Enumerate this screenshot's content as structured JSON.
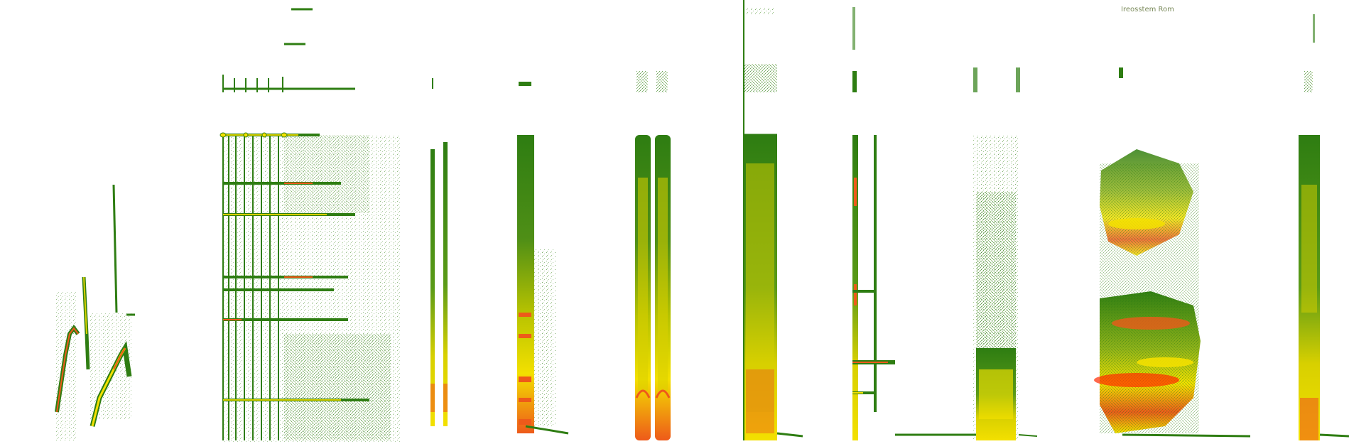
{
  "image": {
    "kind": "spectrogram",
    "background": "#ffffff",
    "palette": {
      "low": "#2e7d12",
      "mid_low": "#6fa31c",
      "mid": "#d8d000",
      "high": "#f3e000",
      "peak": "#ee5a1a",
      "hot": "#ff2a00"
    },
    "faint_text": "Ireosstem Rom"
  },
  "events": [
    {
      "label": "chirp-cluster-1"
    },
    {
      "label": "harmonic-comb"
    },
    {
      "label": "thin-pair"
    },
    {
      "label": "pulse-column"
    },
    {
      "label": "twin-columns"
    },
    {
      "label": "wide-column"
    },
    {
      "label": "tick-series"
    },
    {
      "label": "broadband-column"
    },
    {
      "label": "blob-cluster"
    },
    {
      "label": "right-column"
    }
  ]
}
